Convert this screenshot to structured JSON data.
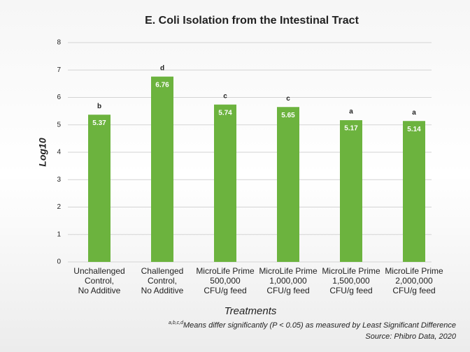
{
  "chart_data": {
    "type": "bar",
    "title": "E. Coli Isolation from the Intestinal Tract",
    "x_label": "Treatments",
    "y_label": "Log10",
    "categories": [
      [
        "Unchallenged",
        "Control,",
        "No Additive"
      ],
      [
        "Challenged",
        "Control,",
        "No Additive"
      ],
      [
        "MicroLife Prime",
        "500,000",
        "CFU/g feed"
      ],
      [
        "MicroLife Prime",
        "1,000,000",
        "CFU/g feed"
      ],
      [
        "MicroLife Prime",
        "1,500,000",
        "CFU/g feed"
      ],
      [
        "MicroLife Prime",
        "2,000,000",
        "CFU/g feed"
      ]
    ],
    "values": [
      5.37,
      6.76,
      5.74,
      5.65,
      5.17,
      5.14
    ],
    "significance_letters": [
      "b",
      "d",
      "c",
      "c",
      "a",
      "a"
    ],
    "color": "#6cb33e",
    "ylim": [
      0,
      8
    ],
    "yticks": [
      0,
      1,
      2,
      3,
      4,
      5,
      6,
      7,
      8
    ],
    "grid": true,
    "footnote_marks": "a,b,c,d",
    "footnote": "Means differ significantly (P < 0.05) as measured by Least Significant Difference",
    "source": "Source: Phibro Data, 2020"
  }
}
